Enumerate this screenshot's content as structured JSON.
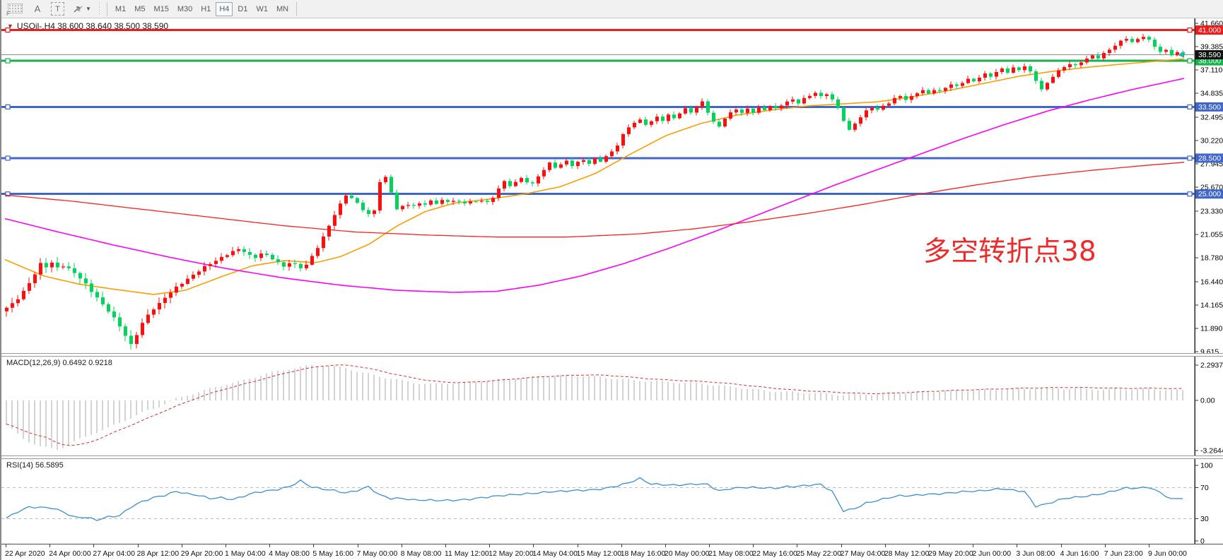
{
  "toolbar": {
    "label_a": "A",
    "label_t": "T",
    "timeframes": [
      "M1",
      "M5",
      "M15",
      "M30",
      "H1",
      "H4",
      "D1",
      "W1",
      "MN"
    ],
    "active_timeframe": "H4"
  },
  "chart": {
    "symbol": "USOil-",
    "period": "H4",
    "title_line": "USOil-,H4  38.600 38.640 38.500 38.590",
    "ohlc": {
      "open": "38.600",
      "high": "38.640",
      "low": "38.500",
      "close": "38.590"
    },
    "annotation": {
      "text": "多空转折点38",
      "color": "#ee2a2a"
    },
    "current_price": {
      "label": "38.590",
      "value": 38.59,
      "badge_color": "#111111"
    },
    "price_axis_ticks": [
      "41.660",
      "39.385",
      "37.110",
      "34.835",
      "32.495",
      "30.220",
      "27.945",
      "25.670",
      "23.330",
      "21.055",
      "18.780",
      "16.440",
      "14.165",
      "11.890",
      "9.615"
    ],
    "hlines": [
      {
        "label": "41.000",
        "price": 41.0,
        "color": "#ee1c1c"
      },
      {
        "label": "38.000",
        "price": 38.0,
        "color": "#16b24c"
      },
      {
        "label": "33.500",
        "price": 33.5,
        "color": "#4066cc"
      },
      {
        "label": "28.500",
        "price": 28.5,
        "color": "#4066cc"
      },
      {
        "label": "25.000",
        "price": 25.0,
        "color": "#4066cc"
      }
    ]
  },
  "macd_panel": {
    "label": "MACD(12,26,9) 0.6492 0.9218",
    "axis_labels": [
      "2.2937",
      "0.00",
      "-3.2644"
    ],
    "current": 0.6492,
    "signal_current": 0.9218
  },
  "rsi_panel": {
    "label": "RSI(14) 56.5895",
    "axis_labels": [
      "100",
      "70",
      "30",
      "0"
    ],
    "levels": [
      70,
      30
    ],
    "current": 56.5895
  },
  "time_axis": {
    "labels": [
      "22 Apr 2020",
      "24 Apr 00:00",
      "27 Apr 04:00",
      "28 Apr 12:00",
      "29 Apr 20:00",
      "1 May 04:00",
      "4 May 08:00",
      "5 May 16:00",
      "7 May 00:00",
      "8 May 08:00",
      "11 May 12:00",
      "12 May 20:00",
      "14 May 04:00",
      "15 May 12:00",
      "18 May 16:00",
      "20 May 00:00",
      "21 May 08:00",
      "22 May 16:00",
      "25 May 22:00",
      "27 May 04:00",
      "28 May 12:00",
      "29 May 20:00",
      "2 Jun 00:00",
      "3 Jun 08:00",
      "4 Jun 16:00",
      "7 Jun 23:00",
      "9 Jun 00:00"
    ]
  },
  "chart_data": {
    "type": "candlestick",
    "symbol": "USOil-",
    "timeframe": "H4",
    "ylim": [
      9.615,
      41.66
    ],
    "up_color": "#ff0e0e",
    "down_color": "#00d45a",
    "candles": {
      "x0": 5,
      "dx": 8,
      "closes": [
        13.9,
        14.3,
        14.8,
        15.5,
        16.3,
        17.2,
        18.2,
        17.9,
        18.3,
        17.8,
        18.0,
        17.7,
        17.3,
        16.8,
        16.2,
        15.5,
        14.9,
        14.2,
        13.6,
        12.9,
        12.1,
        11.2,
        10.3,
        11.3,
        12.4,
        13.2,
        13.8,
        14.3,
        14.9,
        15.4,
        15.9,
        16.3,
        16.7,
        17.1,
        17.5,
        17.9,
        18.2,
        18.5,
        18.8,
        19.1,
        19.4,
        19.6,
        19.4,
        19.0,
        18.8,
        19.2,
        19.0,
        18.7,
        18.3,
        17.9,
        18.3,
        18.1,
        17.8,
        18.1,
        18.9,
        19.8,
        20.8,
        21.9,
        23.0,
        24.0,
        24.9,
        24.6,
        24.1,
        23.5,
        23.0,
        23.4,
        26.2,
        26.6,
        25.2,
        23.5,
        23.8,
        24.0,
        23.8,
        24.1,
        24.0,
        24.3,
        24.1,
        24.4,
        24.2,
        24.4,
        24.2,
        24.1,
        24.3,
        24.2,
        24.4,
        24.2,
        24.6,
        25.6,
        26.2,
        25.8,
        26.2,
        26.5,
        26.2,
        26.0,
        26.7,
        27.4,
        28.0,
        27.6,
        27.9,
        28.2,
        27.8,
        28.1,
        28.3,
        28.0,
        28.4,
        28.2,
        28.7,
        29.1,
        29.8,
        30.8,
        31.5,
        32.0,
        32.2,
        31.8,
        32.1,
        32.5,
        32.2,
        32.7,
        32.4,
        32.9,
        33.3,
        33.0,
        33.5,
        34.0,
        33.0,
        32.0,
        31.6,
        32.4,
        32.9,
        33.3,
        32.9,
        33.3,
        33.0,
        33.4,
        33.2,
        33.6,
        33.3,
        33.7,
        34.0,
        34.2,
        33.9,
        34.3,
        34.6,
        34.9,
        34.5,
        34.8,
        34.2,
        33.4,
        32.2,
        31.2,
        31.9,
        32.5,
        33.1,
        33.5,
        33.2,
        33.6,
        33.9,
        34.3,
        34.6,
        34.2,
        34.5,
        34.9,
        35.1,
        34.8,
        35.2,
        35.0,
        35.4,
        35.7,
        35.5,
        35.9,
        36.2,
        36.0,
        36.4,
        36.7,
        36.5,
        36.9,
        37.2,
        36.9,
        37.3,
        37.1,
        37.5,
        36.9,
        36.1,
        35.2,
        35.8,
        36.5,
        37.0,
        37.4,
        37.7,
        37.5,
        37.9,
        38.2,
        38.5,
        38.3,
        38.7,
        39.1,
        39.5,
        39.9,
        40.2,
        39.8,
        40.1,
        40.4,
        40.0,
        39.4,
        38.9,
        39.0,
        38.6,
        38.8,
        38.59
      ]
    },
    "moving_averages": [
      {
        "name": "fast-ma",
        "color": "#ff9d00",
        "points": [
          [
            5,
            18.6
          ],
          [
            60,
            17.0
          ],
          [
            110,
            16.2
          ],
          [
            160,
            15.7
          ],
          [
            215,
            15.2
          ],
          [
            260,
            15.6
          ],
          [
            310,
            16.9
          ],
          [
            355,
            18.0
          ],
          [
            400,
            18.5
          ],
          [
            445,
            18.3
          ],
          [
            480,
            18.9
          ],
          [
            520,
            20.1
          ],
          [
            560,
            21.9
          ],
          [
            600,
            23.3
          ],
          [
            640,
            24.1
          ],
          [
            690,
            24.5
          ],
          [
            740,
            25.0
          ],
          [
            790,
            25.7
          ],
          [
            840,
            27.0
          ],
          [
            890,
            28.9
          ],
          [
            940,
            30.7
          ],
          [
            990,
            31.9
          ],
          [
            1040,
            32.7
          ],
          [
            1090,
            33.2
          ],
          [
            1140,
            33.6
          ],
          [
            1190,
            33.8
          ],
          [
            1240,
            34.0
          ],
          [
            1290,
            34.5
          ],
          [
            1340,
            35.1
          ],
          [
            1390,
            35.8
          ],
          [
            1440,
            36.5
          ],
          [
            1490,
            37.0
          ],
          [
            1540,
            37.4
          ],
          [
            1590,
            37.7
          ],
          [
            1640,
            38.0
          ],
          [
            1674,
            38.2
          ]
        ]
      },
      {
        "name": "mid-ma",
        "color": "#ff00ff",
        "points": [
          [
            5,
            22.6
          ],
          [
            80,
            21.3
          ],
          [
            160,
            20.0
          ],
          [
            240,
            18.8
          ],
          [
            320,
            17.7
          ],
          [
            400,
            16.8
          ],
          [
            480,
            16.1
          ],
          [
            560,
            15.6
          ],
          [
            640,
            15.4
          ],
          [
            700,
            15.5
          ],
          [
            760,
            16.1
          ],
          [
            820,
            17.0
          ],
          [
            880,
            18.2
          ],
          [
            940,
            19.6
          ],
          [
            1000,
            21.1
          ],
          [
            1060,
            22.7
          ],
          [
            1120,
            24.3
          ],
          [
            1180,
            25.9
          ],
          [
            1240,
            27.4
          ],
          [
            1300,
            28.9
          ],
          [
            1360,
            30.4
          ],
          [
            1420,
            31.8
          ],
          [
            1480,
            33.1
          ],
          [
            1540,
            34.2
          ],
          [
            1600,
            35.2
          ],
          [
            1674,
            36.3
          ]
        ]
      },
      {
        "name": "slow-ma",
        "color": "#ff2020",
        "points": [
          [
            5,
            24.9
          ],
          [
            100,
            24.3
          ],
          [
            200,
            23.5
          ],
          [
            300,
            22.7
          ],
          [
            400,
            21.9
          ],
          [
            500,
            21.3
          ],
          [
            600,
            21.0
          ],
          [
            700,
            20.8
          ],
          [
            800,
            20.8
          ],
          [
            900,
            21.1
          ],
          [
            980,
            21.6
          ],
          [
            1060,
            22.3
          ],
          [
            1140,
            23.1
          ],
          [
            1220,
            24.0
          ],
          [
            1300,
            25.0
          ],
          [
            1380,
            25.9
          ],
          [
            1460,
            26.7
          ],
          [
            1540,
            27.3
          ],
          [
            1620,
            27.8
          ],
          [
            1674,
            28.1
          ]
        ]
      }
    ],
    "macd": {
      "x0": 5,
      "dx": 24,
      "scale_max": 2.2937,
      "scale_min": -3.2644,
      "values": [
        -1.6,
        -2.5,
        -3.0,
        -3.2,
        -2.7,
        -2.2,
        -1.8,
        -1.3,
        -0.8,
        -0.4,
        0.1,
        0.45,
        0.75,
        1.05,
        1.3,
        1.65,
        1.9,
        2.1,
        2.28,
        2.25,
        2.1,
        1.8,
        1.55,
        1.35,
        1.15,
        1.05,
        1.1,
        1.15,
        1.25,
        1.35,
        1.45,
        1.5,
        1.55,
        1.6,
        1.6,
        1.5,
        1.4,
        1.3,
        1.25,
        1.2,
        1.15,
        1.1,
        0.95,
        0.85,
        0.72,
        0.62,
        0.55,
        0.5,
        0.45,
        0.38,
        0.35,
        0.4,
        0.45,
        0.5,
        0.55,
        0.6,
        0.63,
        0.66,
        0.7,
        0.72,
        0.75,
        0.78,
        0.78,
        0.75,
        0.72,
        0.7,
        0.73,
        0.72,
        0.7,
        0.65
      ]
    },
    "rsi": {
      "x0": 5,
      "dx": 16,
      "values": [
        31,
        39,
        45,
        44.5,
        44,
        39,
        32,
        32,
        28.5,
        32.5,
        34,
        45,
        52,
        57,
        60,
        65,
        62,
        60,
        56,
        57,
        54.5,
        59,
        63.5,
        65.5,
        67.5,
        71,
        78.5,
        70.5,
        68,
        66,
        63,
        66,
        71,
        60.5,
        56,
        56,
        54,
        54,
        53.5,
        53.5,
        54,
        55,
        57,
        58.5,
        60,
        61,
        62,
        63,
        64.5,
        65,
        66,
        66.5,
        67,
        69,
        72,
        76,
        81.5,
        74.5,
        73.5,
        73,
        73.5,
        74.5,
        74,
        65.5,
        68.5,
        70,
        70,
        69.5,
        69,
        71,
        71.5,
        73,
        74,
        65,
        40,
        43,
        50,
        53.5,
        57,
        59.5,
        59.5,
        61,
        61.5,
        62.5,
        64,
        65,
        65.5,
        67,
        68.5,
        66.5,
        65,
        46,
        49,
        54,
        57,
        58,
        60,
        62.5,
        66,
        69.5,
        69,
        70.5,
        63.5,
        55,
        56.6
      ]
    }
  }
}
